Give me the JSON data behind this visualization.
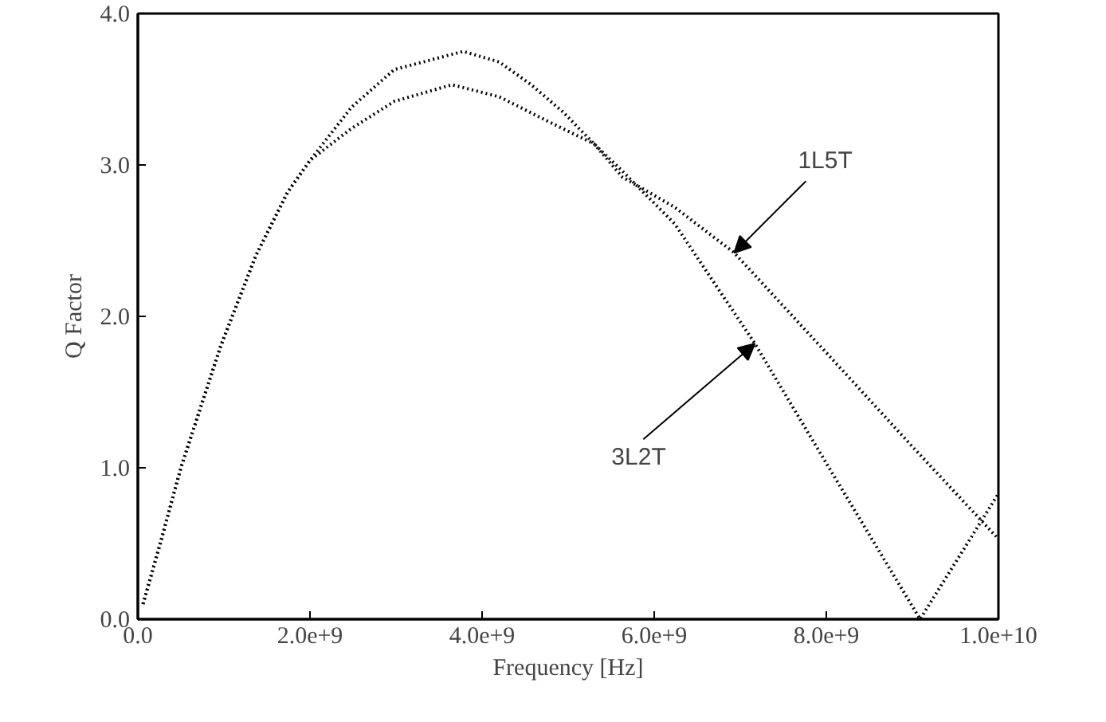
{
  "chart_data": {
    "type": "line",
    "xlabel": "Frequency [Hz]",
    "ylabel": "Q Factor",
    "xlim": [
      0,
      10000000000.0
    ],
    "ylim": [
      0,
      4.0
    ],
    "xticks": [
      {
        "value": 0,
        "label": "0.0"
      },
      {
        "value": 2000000000.0,
        "label": "2.0e+9"
      },
      {
        "value": 4000000000.0,
        "label": "4.0e+9"
      },
      {
        "value": 6000000000.0,
        "label": "6.0e+9"
      },
      {
        "value": 8000000000.0,
        "label": "8.0e+9"
      },
      {
        "value": 10000000000.0,
        "label": "1.0e+10"
      }
    ],
    "yticks": [
      {
        "value": 0,
        "label": "0.0"
      },
      {
        "value": 1,
        "label": "1.0"
      },
      {
        "value": 2,
        "label": "2.0"
      },
      {
        "value": 3,
        "label": "3.0"
      },
      {
        "value": 4,
        "label": "4.0"
      }
    ],
    "grid": false,
    "marker": "none",
    "line_style": "dotted",
    "series": [
      {
        "color": "#000000",
        "x": [
          60000000.0,
          260000000.0,
          500000000.0,
          960000000.0,
          1370000000.0,
          1740000000.0,
          2000000000.0,
          2480000000.0,
          2980000000.0,
          3650000000.0,
          4200000000.0,
          4830000000.0,
          5300000000.0,
          5630000000.0,
          6240000000.0,
          6930000000.0,
          8000000000.0,
          9000000000.0,
          10000000000.0
        ],
        "values": [
          0.1,
          0.5,
          1.0,
          1.8,
          2.4,
          2.82,
          3.03,
          3.24,
          3.42,
          3.53,
          3.45,
          3.27,
          3.14,
          2.92,
          2.72,
          2.42,
          1.76,
          1.14,
          0.53
        ]
      },
      {
        "color": "#000000",
        "x": [
          60000000.0,
          260000000.0,
          500000000.0,
          960000000.0,
          1370000000.0,
          1740000000.0,
          2000000000.0,
          2480000000.0,
          2980000000.0,
          3780000000.0,
          4200000000.0,
          4570000000.0,
          4940000000.0,
          5300000000.0,
          5630000000.0,
          6240000000.0,
          7170000000.0,
          8000000000.0,
          9090000000.0,
          10000000000.0
        ],
        "values": [
          0.1,
          0.5,
          1.0,
          1.8,
          2.4,
          2.82,
          3.03,
          3.38,
          3.63,
          3.75,
          3.68,
          3.53,
          3.35,
          3.14,
          2.96,
          2.61,
          1.82,
          1.03,
          0.0,
          0.83
        ]
      }
    ],
    "annotations": [
      {
        "text": "1L5T",
        "x": 6930000000.0,
        "y": 2.42
      },
      {
        "text": "3L2T",
        "x": 7170000000.0,
        "y": 1.82
      }
    ]
  }
}
